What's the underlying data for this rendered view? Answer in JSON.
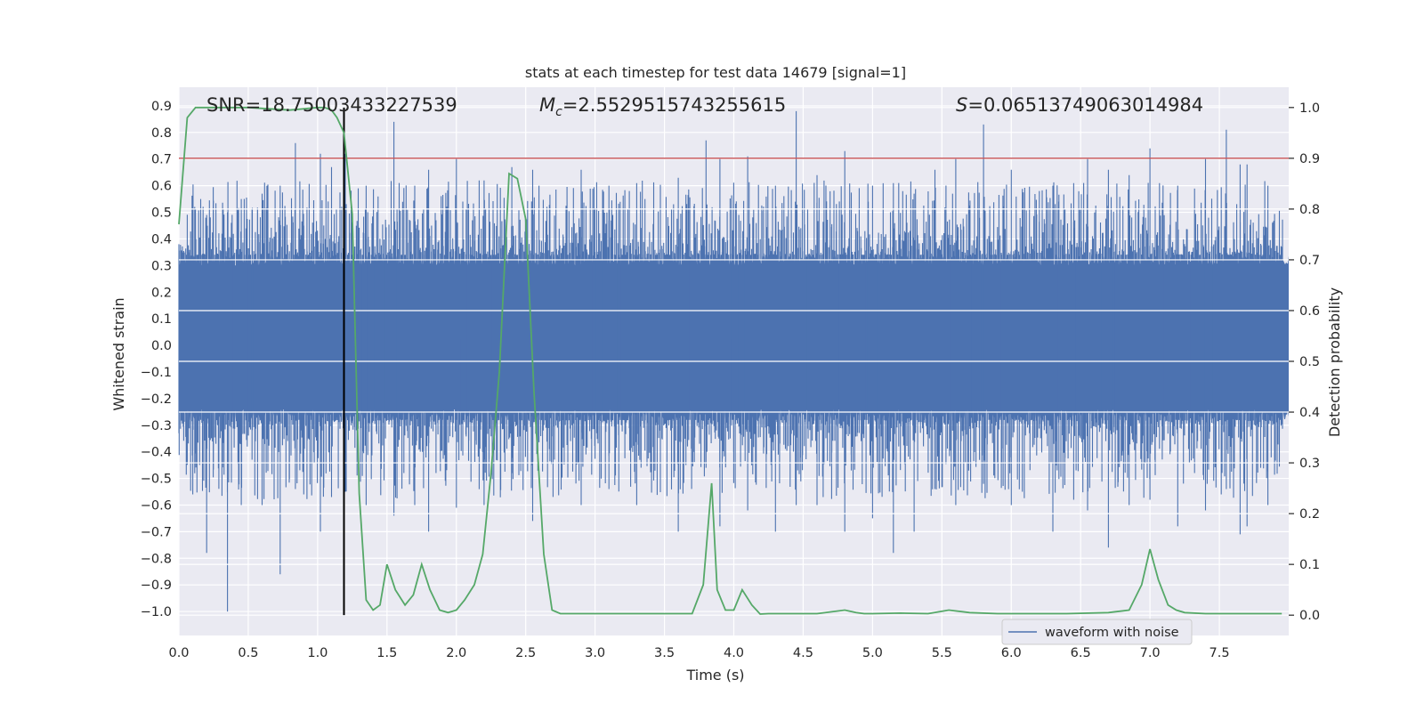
{
  "chart_data": {
    "type": "line",
    "title": "stats at each timestep for test data 14679 [signal=1]",
    "xlabel": "Time (s)",
    "ylabel": "Whitened strain",
    "y2label": "Detection probability",
    "xlim": [
      0.0,
      8.0
    ],
    "ylim": [
      -1.09,
      0.97
    ],
    "y2lim": [
      -0.04,
      1.04
    ],
    "xticks": [
      0.0,
      0.5,
      1.0,
      1.5,
      2.0,
      2.5,
      3.0,
      3.5,
      4.0,
      4.5,
      5.0,
      5.5,
      6.0,
      6.5,
      7.0,
      7.5
    ],
    "xtick_labels": [
      "0.0",
      "0.5",
      "1.0",
      "1.5",
      "2.0",
      "2.5",
      "3.0",
      "3.5",
      "4.0",
      "4.5",
      "5.0",
      "5.5",
      "6.0",
      "6.5",
      "7.0",
      "7.5"
    ],
    "yticks": [
      -1.0,
      -0.9,
      -0.8,
      -0.7,
      -0.6,
      -0.5,
      -0.4,
      -0.3,
      -0.2,
      -0.1,
      0.0,
      0.1,
      0.2,
      0.3,
      0.4,
      0.5,
      0.6,
      0.7,
      0.8,
      0.9
    ],
    "ytick_labels": [
      "−1.0",
      "−0.9",
      "−0.8",
      "−0.7",
      "−0.6",
      "−0.5",
      "−0.4",
      "−0.3",
      "−0.2",
      "−0.1",
      "0.0",
      "0.1",
      "0.2",
      "0.3",
      "0.4",
      "0.5",
      "0.6",
      "0.7",
      "0.8",
      "0.9"
    ],
    "y2ticks": [
      0.0,
      0.1,
      0.2,
      0.3,
      0.4,
      0.5,
      0.6,
      0.7,
      0.8,
      0.9,
      1.0
    ],
    "y2tick_labels": [
      "0.0",
      "0.1",
      "0.2",
      "0.3",
      "0.4",
      "0.5",
      "0.6",
      "0.7",
      "0.8",
      "0.9",
      "1.0"
    ],
    "grid": true,
    "legend": {
      "entries": [
        "waveform with noise"
      ],
      "placement": "lower-right"
    },
    "annotations": {
      "snr": "SNR=18.75003433227539",
      "mc_symbol": "M",
      "mc_subscript": "c",
      "mc_value": "=2.5529515743255615",
      "s_symbol": "S",
      "s_value": "=0.06513749063014984"
    },
    "threshold": {
      "value": 0.9,
      "axis": "y2",
      "color": "#c44e52"
    },
    "event_time": 1.19,
    "waveform": {
      "name": "waveform with noise",
      "color": "#4c72b0",
      "samples": 4096,
      "band_min": -0.26,
      "band_max": 0.32,
      "spikes": [
        [
          0.0,
          0.38,
          -0.33
        ],
        [
          0.1,
          0.47,
          -0.56
        ],
        [
          0.2,
          0.49,
          -0.78
        ],
        [
          0.35,
          0.5,
          -1.0
        ],
        [
          0.45,
          0.55,
          -0.6
        ],
        [
          0.6,
          0.57,
          -0.6
        ],
        [
          0.73,
          0.6,
          -0.86
        ],
        [
          0.84,
          0.76,
          -0.54
        ],
        [
          0.9,
          0.45,
          -0.56
        ],
        [
          1.02,
          0.72,
          -0.7
        ],
        [
          1.1,
          0.67,
          -0.57
        ],
        [
          1.2,
          0.72,
          -0.55
        ],
        [
          1.35,
          0.6,
          -0.6
        ],
        [
          1.55,
          0.84,
          -0.64
        ],
        [
          1.7,
          0.6,
          -0.6
        ],
        [
          1.8,
          0.66,
          -0.7
        ],
        [
          2.0,
          0.7,
          -0.61
        ],
        [
          2.2,
          0.62,
          -0.6
        ],
        [
          2.4,
          0.67,
          -0.48
        ],
        [
          2.55,
          0.66,
          -0.66
        ],
        [
          2.9,
          0.66,
          -0.6
        ],
        [
          3.1,
          0.6,
          -0.54
        ],
        [
          3.3,
          0.61,
          -0.6
        ],
        [
          3.6,
          0.63,
          -0.7
        ],
        [
          3.8,
          0.77,
          -0.46
        ],
        [
          3.9,
          0.7,
          -0.68
        ],
        [
          4.1,
          0.71,
          -0.62
        ],
        [
          4.3,
          0.6,
          -0.7
        ],
        [
          4.45,
          0.88,
          -0.6
        ],
        [
          4.6,
          0.64,
          -0.6
        ],
        [
          4.8,
          0.73,
          -0.7
        ],
        [
          5.0,
          0.6,
          -0.65
        ],
        [
          5.15,
          0.61,
          -0.78
        ],
        [
          5.3,
          0.57,
          -0.7
        ],
        [
          5.45,
          0.66,
          -0.54
        ],
        [
          5.6,
          0.7,
          -0.6
        ],
        [
          5.8,
          0.83,
          -0.52
        ],
        [
          6.0,
          0.66,
          -0.6
        ],
        [
          6.3,
          0.6,
          -0.7
        ],
        [
          6.45,
          0.61,
          -0.58
        ],
        [
          6.55,
          0.7,
          -0.62
        ],
        [
          6.7,
          0.66,
          -0.76
        ],
        [
          6.85,
          0.64,
          -0.6
        ],
        [
          7.0,
          0.74,
          -0.58
        ],
        [
          7.2,
          0.6,
          -0.68
        ],
        [
          7.4,
          0.7,
          -0.62
        ],
        [
          7.55,
          0.81,
          -0.54
        ],
        [
          7.65,
          0.68,
          -0.71
        ],
        [
          7.7,
          0.68,
          -0.68
        ],
        [
          7.85,
          0.6,
          -0.6
        ]
      ]
    },
    "probability": {
      "name": "detection probability",
      "color": "#55a868",
      "x": [
        0.0,
        0.06,
        0.12,
        0.18,
        0.3,
        0.5,
        0.8,
        1.0,
        1.05,
        1.1,
        1.14,
        1.19,
        1.25,
        1.3,
        1.35,
        1.4,
        1.45,
        1.5,
        1.56,
        1.63,
        1.69,
        1.75,
        1.81,
        1.88,
        1.94,
        2.0,
        2.06,
        2.13,
        2.19,
        2.25,
        2.31,
        2.38,
        2.44,
        2.5,
        2.56,
        2.63,
        2.69,
        2.75,
        2.81,
        3.0,
        3.2,
        3.4,
        3.6,
        3.7,
        3.78,
        3.84,
        3.88,
        3.94,
        4.0,
        4.06,
        4.13,
        4.19,
        4.25,
        4.4,
        4.6,
        4.8,
        4.88,
        4.94,
        5.0,
        5.2,
        5.4,
        5.55,
        5.7,
        5.9,
        6.1,
        6.4,
        6.7,
        6.85,
        6.94,
        7.0,
        7.06,
        7.13,
        7.19,
        7.25,
        7.4,
        7.6,
        7.8,
        7.95
      ],
      "values": [
        0.77,
        0.98,
        1.0,
        1.0,
        1.0,
        1.0,
        0.995,
        1.0,
        1.0,
        0.995,
        0.98,
        0.95,
        0.79,
        0.24,
        0.03,
        0.01,
        0.02,
        0.1,
        0.05,
        0.02,
        0.04,
        0.1,
        0.05,
        0.01,
        0.005,
        0.01,
        0.03,
        0.06,
        0.12,
        0.28,
        0.48,
        0.87,
        0.86,
        0.78,
        0.44,
        0.12,
        0.01,
        0.003,
        0.003,
        0.003,
        0.003,
        0.003,
        0.003,
        0.003,
        0.06,
        0.26,
        0.05,
        0.01,
        0.01,
        0.05,
        0.02,
        0.002,
        0.003,
        0.003,
        0.003,
        0.01,
        0.005,
        0.003,
        0.003,
        0.004,
        0.003,
        0.01,
        0.005,
        0.003,
        0.003,
        0.003,
        0.005,
        0.01,
        0.06,
        0.13,
        0.07,
        0.02,
        0.01,
        0.005,
        0.003,
        0.003,
        0.003,
        0.003
      ]
    }
  }
}
